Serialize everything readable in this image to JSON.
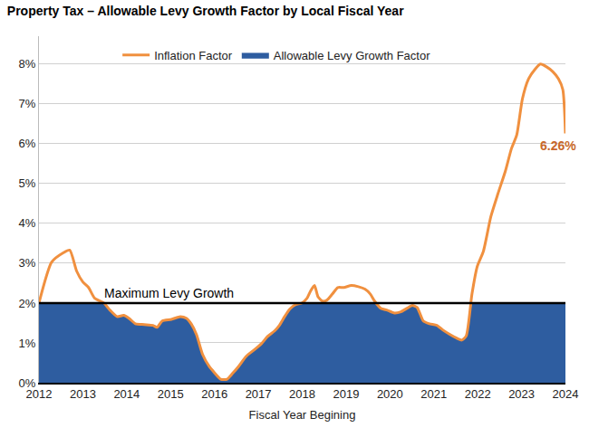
{
  "chart_data": {
    "type": "line",
    "title": "Property Tax – Allowable Levy Growth Factor by Local Fiscal Year",
    "x_label": "Fiscal Year Begining",
    "x": [
      2012,
      2012.29,
      2012.55,
      2012.7,
      2012.86,
      2013,
      2013.13,
      2013.27,
      2013.48,
      2013.62,
      2013.78,
      2013.93,
      2014.05,
      2014.2,
      2014.4,
      2014.6,
      2014.69,
      2014.81,
      2015.02,
      2015.22,
      2015.36,
      2015.47,
      2015.59,
      2015.73,
      2015.88,
      2016,
      2016.14,
      2016.29,
      2016.41,
      2016.55,
      2016.72,
      2016.9,
      2017.07,
      2017.21,
      2017.37,
      2017.48,
      2017.6,
      2017.72,
      2017.85,
      2017.99,
      2018.11,
      2018.19,
      2018.28,
      2018.36,
      2018.46,
      2018.56,
      2018.69,
      2018.81,
      2018.95,
      2019.12,
      2019.28,
      2019.43,
      2019.55,
      2019.65,
      2019.79,
      2019.94,
      2020.1,
      2020.25,
      2020.39,
      2020.51,
      2020.62,
      2020.76,
      2020.9,
      2021.07,
      2021.21,
      2021.37,
      2021.52,
      2021.64,
      2021.74,
      2021.87,
      2021.99,
      2022.13,
      2022.3,
      2022.46,
      2022.63,
      2022.77,
      2022.89,
      2023.02,
      2023.16,
      2023.3,
      2023.43,
      2023.57,
      2023.71,
      2023.84,
      2023.94,
      2024
    ],
    "series": [
      {
        "name": "Inflation Factor",
        "type": "line",
        "color": "#f0903f",
        "values": [
          2.0,
          3.03,
          3.26,
          3.33,
          2.8,
          2.53,
          2.39,
          2.12,
          2.0,
          1.82,
          1.66,
          1.69,
          1.62,
          1.48,
          1.46,
          1.44,
          1.39,
          1.55,
          1.59,
          1.66,
          1.62,
          1.48,
          1.21,
          0.71,
          0.41,
          0.25,
          0.09,
          0.09,
          0.23,
          0.41,
          0.66,
          0.82,
          0.98,
          1.16,
          1.3,
          1.44,
          1.66,
          1.85,
          1.96,
          2.0,
          2.12,
          2.3,
          2.44,
          2.16,
          2.05,
          2.07,
          2.23,
          2.39,
          2.39,
          2.44,
          2.41,
          2.35,
          2.23,
          2.05,
          1.87,
          1.82,
          1.75,
          1.78,
          1.87,
          1.94,
          1.89,
          1.55,
          1.48,
          1.44,
          1.32,
          1.21,
          1.12,
          1.07,
          1.18,
          2.23,
          2.92,
          3.3,
          4.17,
          4.74,
          5.31,
          5.88,
          6.22,
          7.13,
          7.63,
          7.86,
          8.0,
          7.93,
          7.81,
          7.63,
          7.36,
          6.26
        ]
      },
      {
        "name": "Allowable Levy Growth Factor",
        "type": "area",
        "color": "#2e5da0",
        "values": [
          2,
          2,
          2,
          2,
          2,
          2,
          2,
          2,
          2,
          1.82,
          1.66,
          1.69,
          1.62,
          1.48,
          1.46,
          1.44,
          1.39,
          1.55,
          1.59,
          1.66,
          1.62,
          1.48,
          1.21,
          0.71,
          0.41,
          0.25,
          0.09,
          0.09,
          0.23,
          0.41,
          0.66,
          0.82,
          0.98,
          1.16,
          1.3,
          1.44,
          1.66,
          1.85,
          1.96,
          2,
          2,
          2,
          2,
          2,
          2,
          2,
          2,
          2,
          2,
          2,
          2,
          2,
          2,
          2,
          1.87,
          1.82,
          1.75,
          1.78,
          1.87,
          1.94,
          1.89,
          1.55,
          1.48,
          1.44,
          1.32,
          1.21,
          1.12,
          1.07,
          1.18,
          2,
          2,
          2,
          2,
          2,
          2,
          2,
          2,
          2,
          2,
          2,
          2,
          2,
          2,
          2,
          2,
          2
        ]
      }
    ],
    "reference_lines": [
      {
        "y": 2,
        "label": "Maximum Levy Growth"
      }
    ],
    "annotations": [
      {
        "text": "6.26%",
        "x": 2024,
        "y": 6.26,
        "color": "#c8682a"
      }
    ],
    "xlim": [
      2012,
      2024
    ],
    "xticks": [
      2012,
      2013,
      2014,
      2015,
      2016,
      2017,
      2018,
      2019,
      2020,
      2021,
      2022,
      2023,
      2024
    ],
    "ylim": [
      0,
      8.7
    ],
    "yticks": [
      {
        "value": 0,
        "label": "0%"
      },
      {
        "value": 1,
        "label": "1%"
      },
      {
        "value": 2,
        "label": "2%"
      },
      {
        "value": 3,
        "label": "3%"
      },
      {
        "value": 4,
        "label": "4%"
      },
      {
        "value": 5,
        "label": "5%"
      },
      {
        "value": 6,
        "label": "6%"
      },
      {
        "value": 7,
        "label": "7%"
      },
      {
        "value": 8,
        "label": "8%"
      }
    ],
    "grid": true,
    "legend": "top"
  }
}
